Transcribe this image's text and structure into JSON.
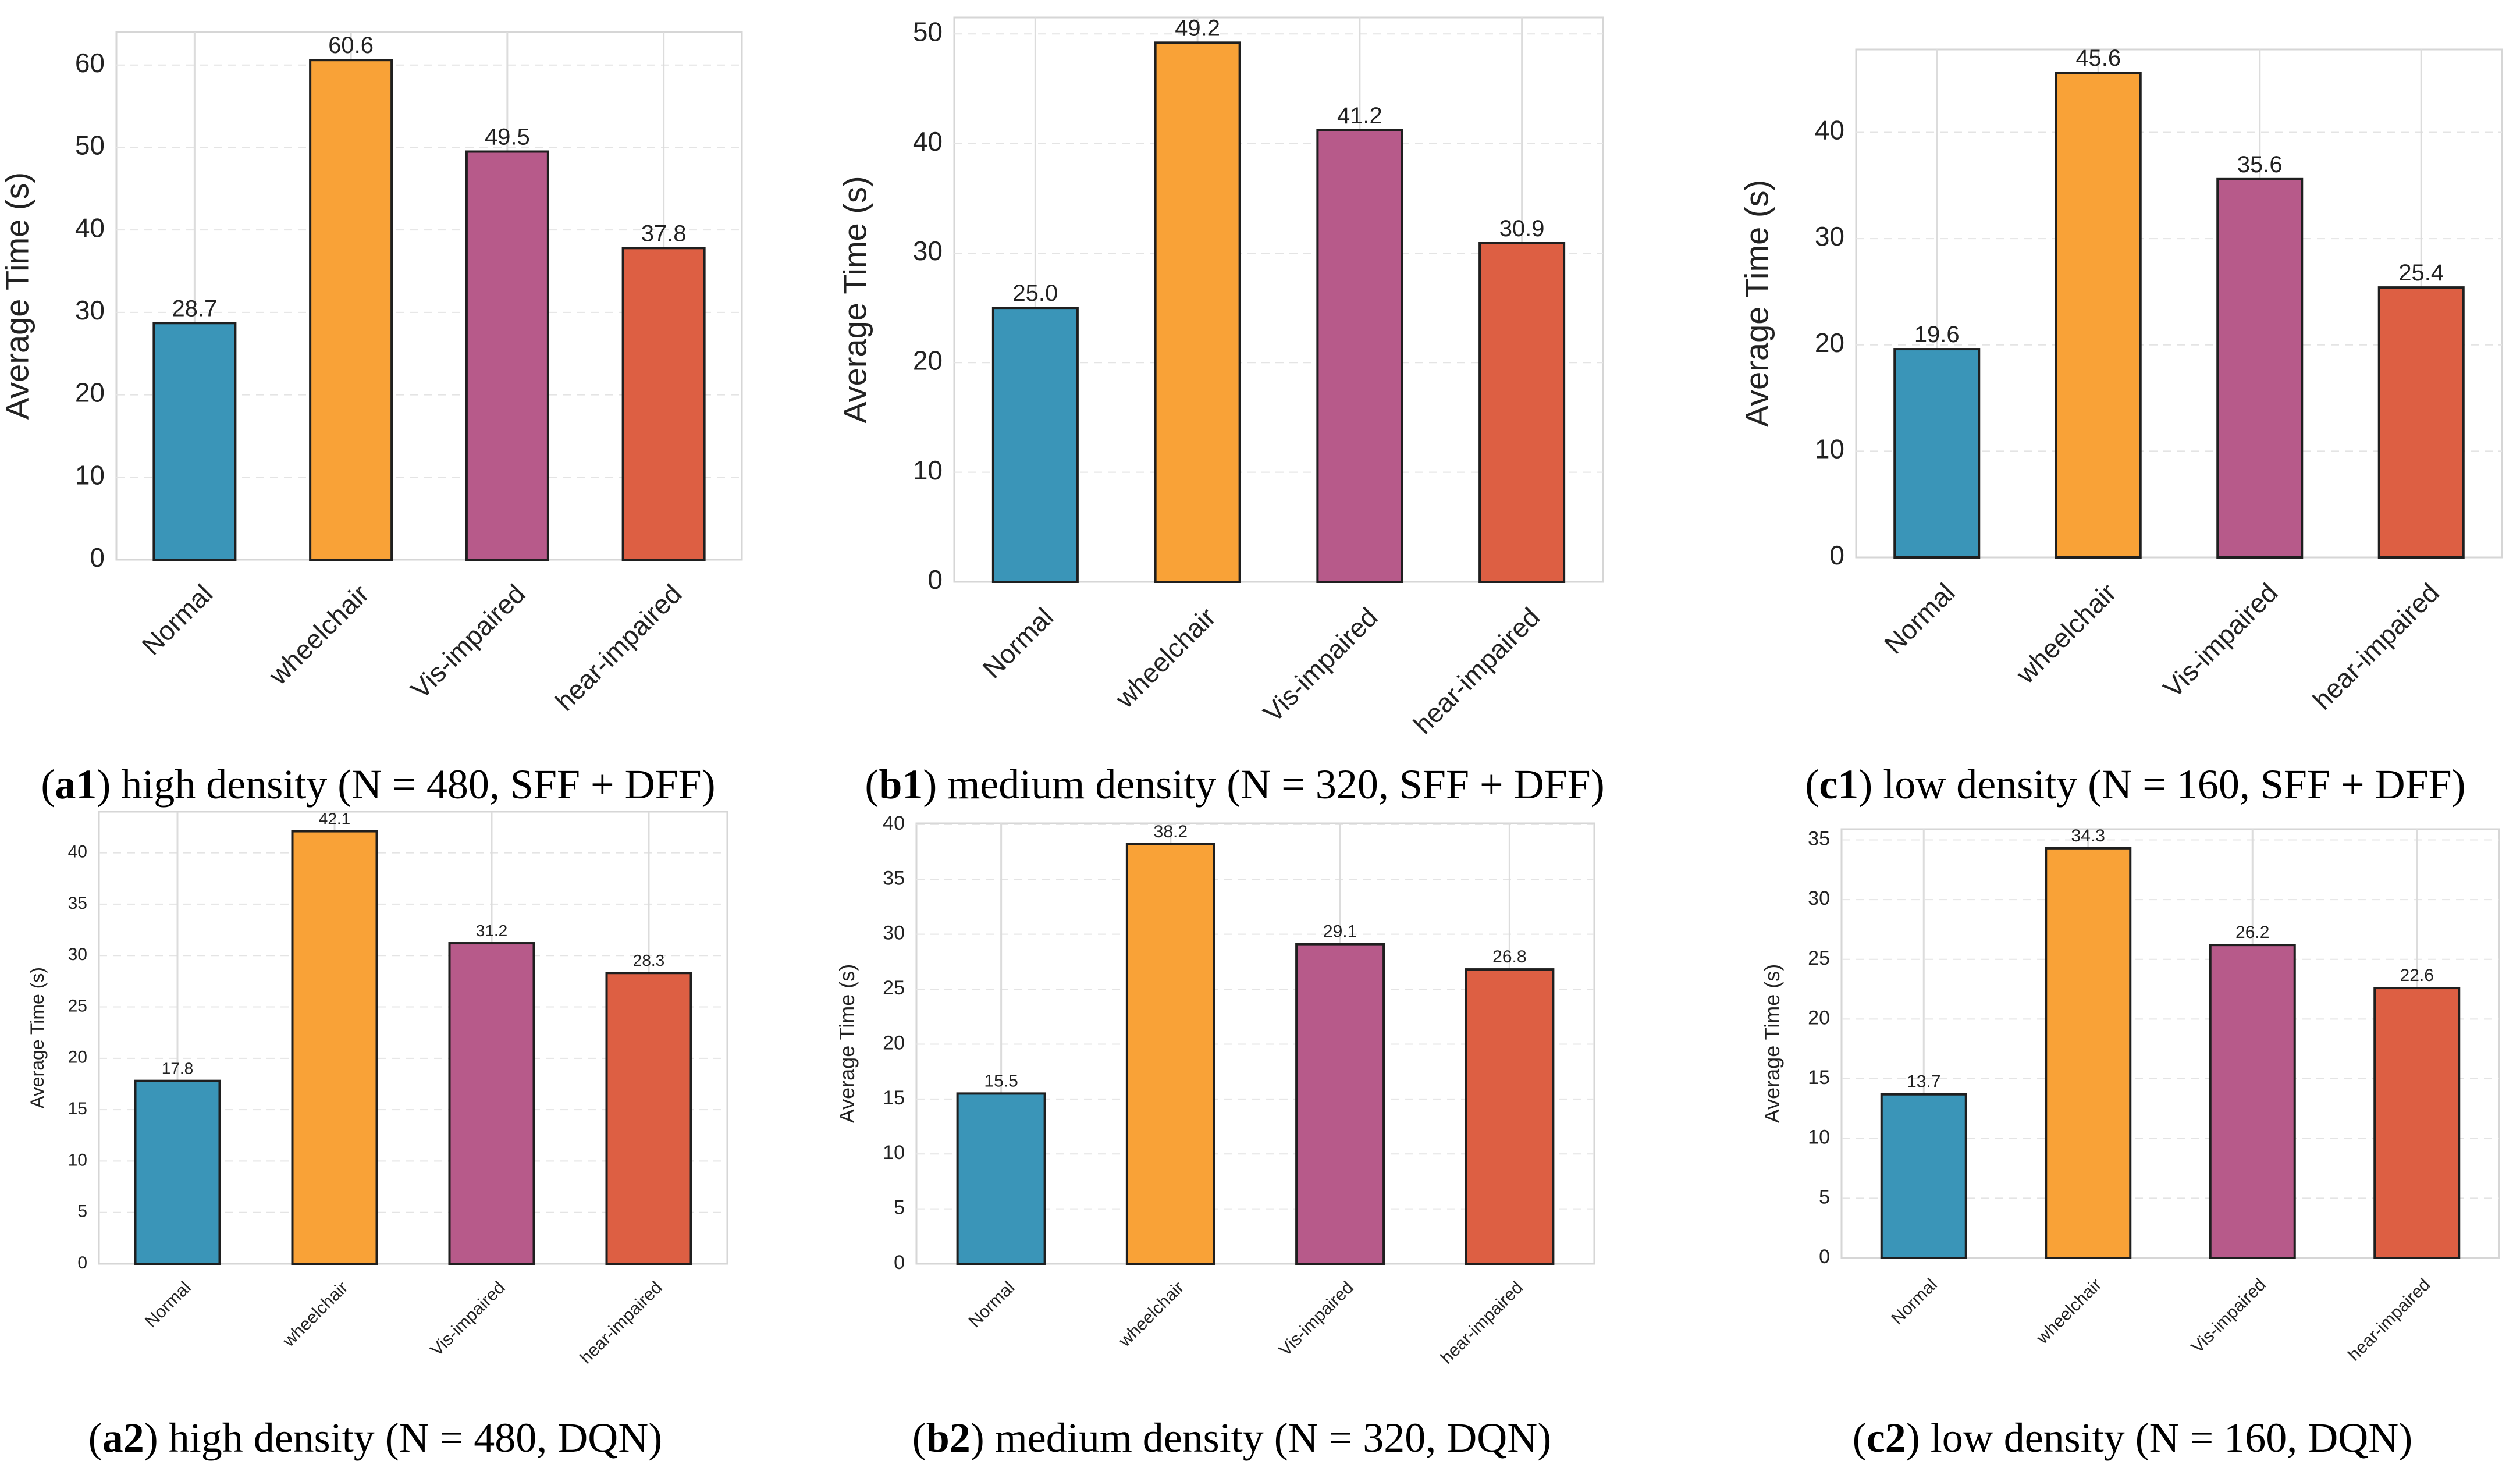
{
  "colors": {
    "normal": "#3a95b8",
    "wheelchair": "#f9a237",
    "vis_impaired": "#b75a8a",
    "hear_impaired": "#dd5f43"
  },
  "chart_data": [
    {
      "type": "bar",
      "panel": "a1",
      "categories": [
        "Normal",
        "wheelchair",
        "Vis-impaired",
        "hear-impaired"
      ],
      "values": [
        28.7,
        60.6,
        49.5,
        37.8
      ],
      "value_labels": [
        "28.7",
        "60.6",
        "49.5",
        "37.8"
      ],
      "ylabel": "Average Time (s)",
      "ylim": [
        0,
        64
      ],
      "yticks": [
        0,
        10,
        20,
        30,
        40,
        50,
        60
      ],
      "caption_id": "a1",
      "caption_text": "high density (N = 480, SFF + DFF)"
    },
    {
      "type": "bar",
      "panel": "b1",
      "categories": [
        "Normal",
        "wheelchair",
        "Vis-impaired",
        "hear-impaired"
      ],
      "values": [
        25.0,
        49.2,
        41.2,
        30.9
      ],
      "value_labels": [
        "25.0",
        "49.2",
        "41.2",
        "30.9"
      ],
      "ylabel": "Average Time (s)",
      "ylim": [
        0,
        51.5
      ],
      "yticks": [
        0,
        10,
        20,
        30,
        40,
        50
      ],
      "caption_id": "b1",
      "caption_text": "medium density (N = 320, SFF + DFF)"
    },
    {
      "type": "bar",
      "panel": "c1",
      "categories": [
        "Normal",
        "wheelchair",
        "Vis-impaired",
        "hear-impaired"
      ],
      "values": [
        19.6,
        45.6,
        35.6,
        25.4
      ],
      "value_labels": [
        "19.6",
        "45.6",
        "35.6",
        "25.4"
      ],
      "ylabel": "Average Time (s)",
      "ylim": [
        0,
        47.8
      ],
      "yticks": [
        0,
        10,
        20,
        30,
        40
      ],
      "caption_id": "c1",
      "caption_text": "low density (N = 160, SFF + DFF)"
    },
    {
      "type": "bar",
      "panel": "a2",
      "categories": [
        "Normal",
        "wheelchair",
        "Vis-impaired",
        "hear-impaired"
      ],
      "values": [
        17.8,
        42.1,
        31.2,
        28.3
      ],
      "value_labels": [
        "17.8",
        "42.1",
        "31.2",
        "28.3"
      ],
      "ylabel": "Average Time (s)",
      "ylim": [
        0,
        44
      ],
      "yticks": [
        0,
        5,
        10,
        15,
        20,
        25,
        30,
        35,
        40
      ],
      "caption_id": "a2",
      "caption_text": "high density (N = 480, DQN)"
    },
    {
      "type": "bar",
      "panel": "b2",
      "categories": [
        "Normal",
        "wheelchair",
        "Vis-impaired",
        "hear-impaired"
      ],
      "values": [
        15.5,
        38.2,
        29.1,
        26.8
      ],
      "value_labels": [
        "15.5",
        "38.2",
        "29.1",
        "26.8"
      ],
      "ylabel": "Average Time (s)",
      "ylim": [
        0,
        40.1
      ],
      "yticks": [
        0,
        5,
        10,
        15,
        20,
        25,
        30,
        35,
        40
      ],
      "caption_id": "b2",
      "caption_text": "medium density (N = 320, DQN)"
    },
    {
      "type": "bar",
      "panel": "c2",
      "categories": [
        "Normal",
        "wheelchair",
        "Vis-impaired",
        "hear-impaired"
      ],
      "values": [
        13.7,
        34.3,
        26.2,
        22.6
      ],
      "value_labels": [
        "13.7",
        "34.3",
        "26.2",
        "22.6"
      ],
      "ylabel": "Average Time (s)",
      "ylim": [
        0,
        35.9
      ],
      "yticks": [
        0,
        5,
        10,
        15,
        20,
        25,
        30,
        35
      ],
      "caption_id": "c2",
      "caption_text": "low density (N = 160, DQN)"
    }
  ]
}
